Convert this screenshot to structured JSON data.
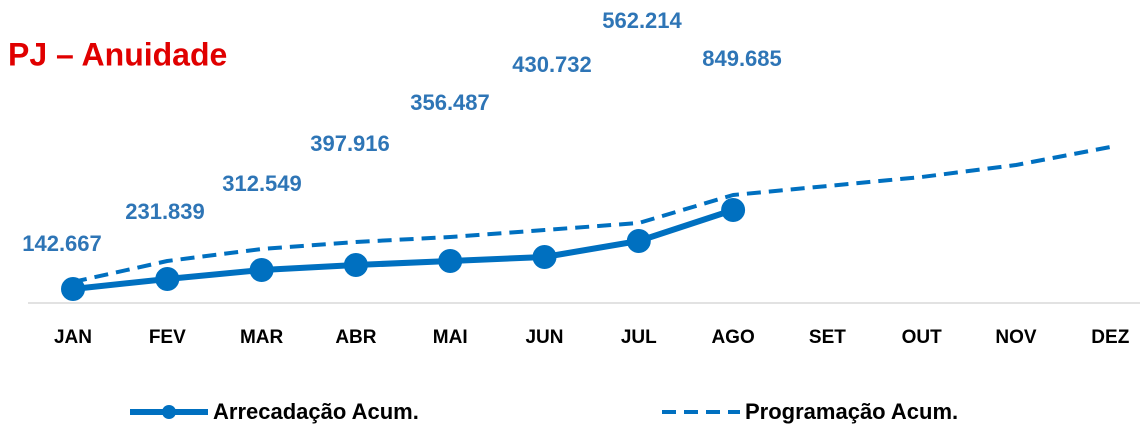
{
  "chart_data": {
    "type": "line",
    "title": "PJ – Anuidade",
    "categories": [
      "JAN",
      "FEV",
      "MAR",
      "ABR",
      "MAI",
      "JUN",
      "JUL",
      "AGO",
      "SET",
      "OUT",
      "NOV",
      "DEZ"
    ],
    "series": [
      {
        "name": "Arrecadação Acum.",
        "color": "#0070C0",
        "style": "solid",
        "markers": true,
        "values": [
          14,
          24,
          33,
          38,
          42,
          46,
          62,
          93,
          null,
          null,
          null,
          null
        ]
      },
      {
        "name": "Programação Acum.",
        "color": "#0070C0",
        "style": "dashed",
        "markers": false,
        "values": [
          21,
          42,
          54,
          61,
          66,
          73,
          80,
          108,
          117,
          126,
          138,
          156
        ]
      }
    ],
    "annotations": [
      "142.667",
      "231.839",
      "312.549",
      "397.916",
      "356.487",
      "430.732",
      "562.214",
      "849.685"
    ],
    "annotation_color": "#2E75B6",
    "title_color": "#E00000",
    "ylim": [
      0,
      160
    ]
  }
}
